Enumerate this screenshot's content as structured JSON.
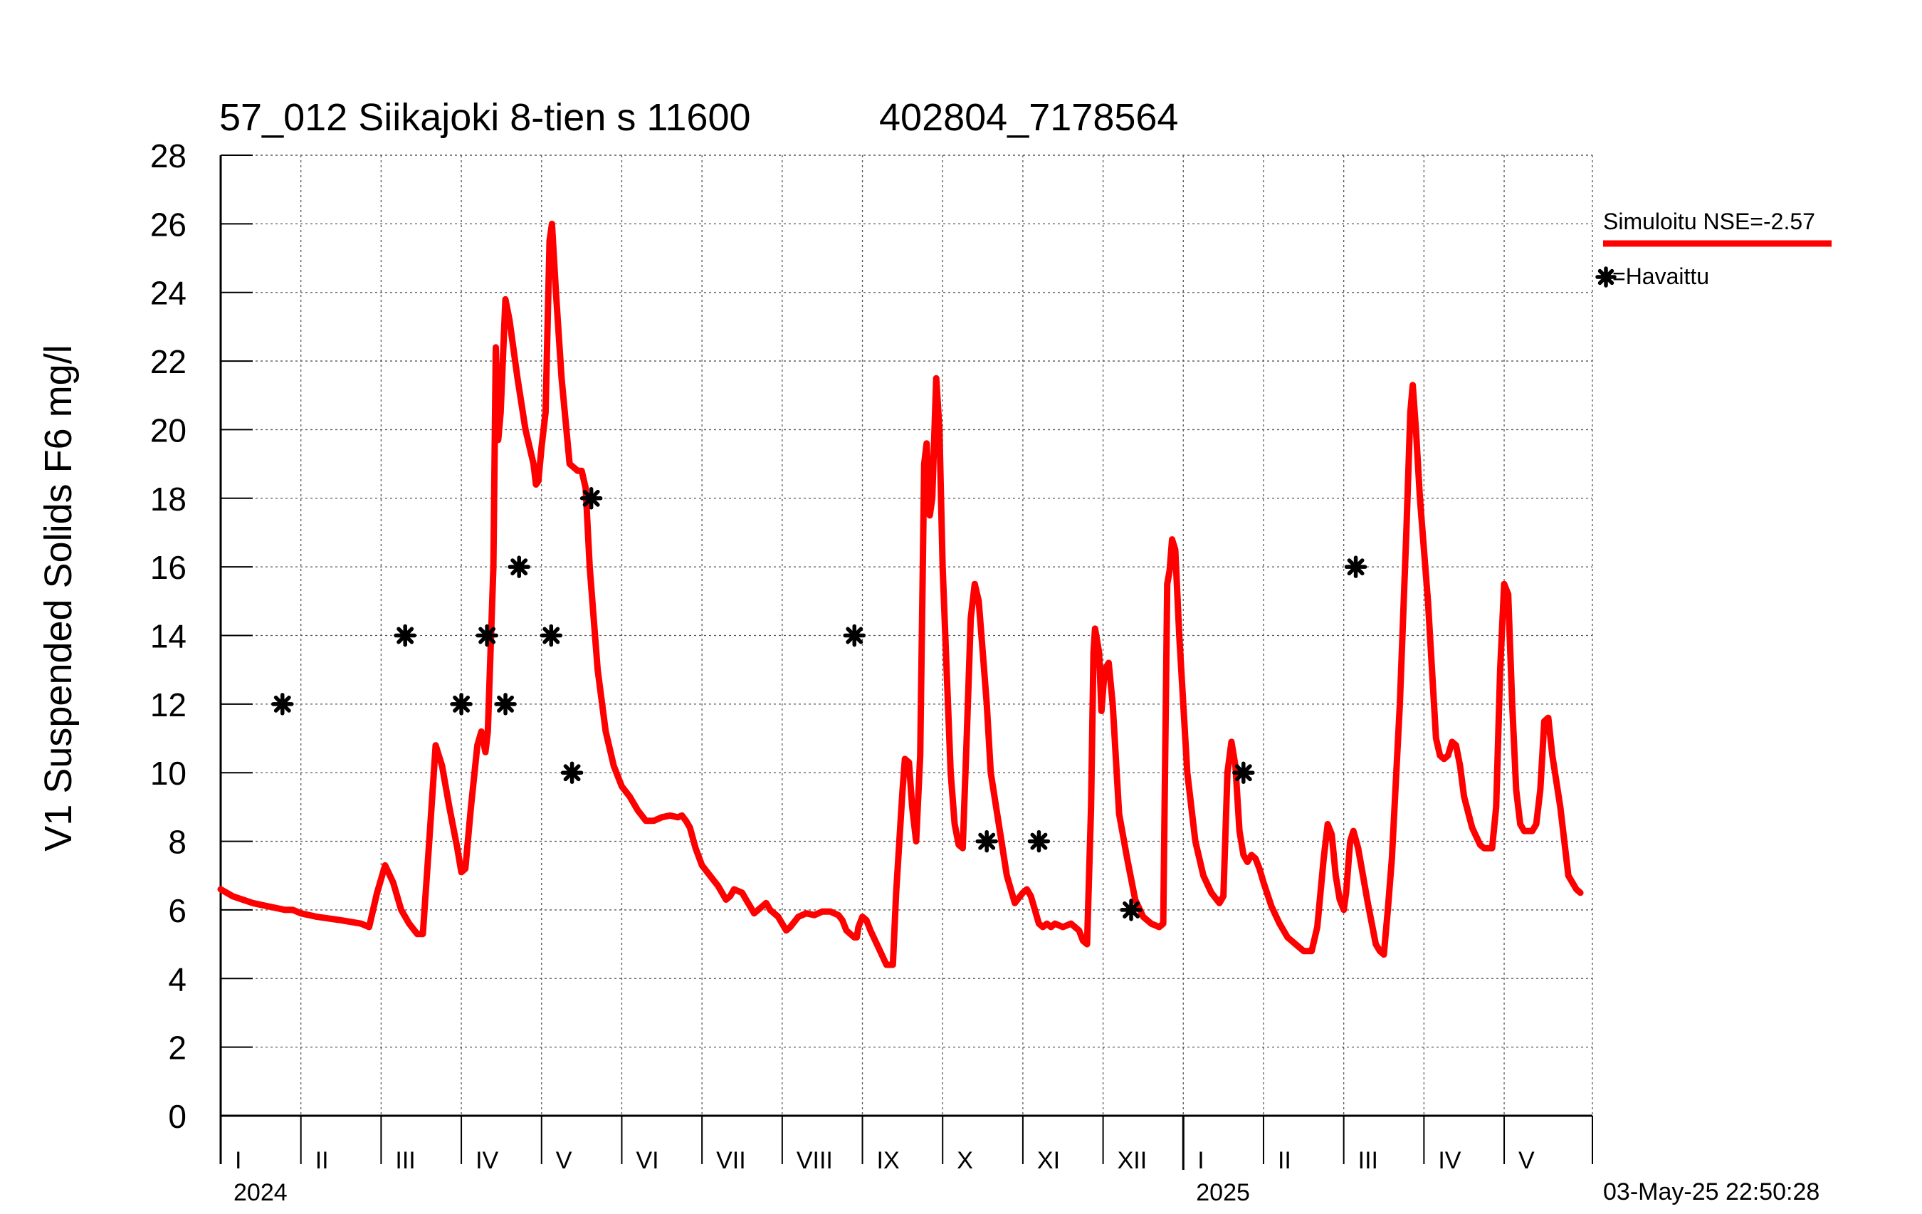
{
  "chart_data": {
    "type": "line",
    "title": "57_012 Siikajoki 8-tien s 11600",
    "station_code": "402804_7178564",
    "ylabel": "V1 Suspended Solids F6 mg/l",
    "xlabel": "",
    "ylim": [
      0,
      28
    ],
    "y_ticks": [
      0,
      2,
      4,
      6,
      8,
      10,
      12,
      14,
      16,
      18,
      20,
      22,
      24,
      26,
      28
    ],
    "grid": true,
    "x_unit": "months since 2024-01-01",
    "xlim": [
      0,
      17.1
    ],
    "months": [
      {
        "label": "I",
        "start": 0,
        "end": 1
      },
      {
        "label": "II",
        "start": 1,
        "end": 2
      },
      {
        "label": "III",
        "start": 2,
        "end": 3
      },
      {
        "label": "IV",
        "start": 3,
        "end": 4
      },
      {
        "label": "V",
        "start": 4,
        "end": 5
      },
      {
        "label": "VI",
        "start": 5,
        "end": 6
      },
      {
        "label": "VII",
        "start": 6,
        "end": 7
      },
      {
        "label": "VIII",
        "start": 7,
        "end": 8
      },
      {
        "label": "IX",
        "start": 8,
        "end": 9
      },
      {
        "label": "X",
        "start": 9,
        "end": 10
      },
      {
        "label": "XI",
        "start": 10,
        "end": 11
      },
      {
        "label": "XII",
        "start": 11,
        "end": 12
      },
      {
        "label": "I",
        "start": 12,
        "end": 13
      },
      {
        "label": "II",
        "start": 13,
        "end": 14
      },
      {
        "label": "III",
        "start": 14,
        "end": 15
      },
      {
        "label": "IV",
        "start": 15,
        "end": 16
      },
      {
        "label": "V",
        "start": 16,
        "end": 17.1
      }
    ],
    "years": [
      {
        "label": "2024",
        "at": 0
      },
      {
        "label": "2025",
        "at": 12
      }
    ],
    "legend_position": "right",
    "series": [
      {
        "name": "Simuloitu NSE=-2.57",
        "type": "line",
        "color": "#ff0000",
        "points": [
          [
            0.0,
            6.6
          ],
          [
            0.15,
            6.4
          ],
          [
            0.4,
            6.2
          ],
          [
            0.6,
            6.1
          ],
          [
            0.8,
            6.0
          ],
          [
            0.9,
            6.0
          ],
          [
            1.0,
            5.9
          ],
          [
            1.2,
            5.8
          ],
          [
            1.5,
            5.7
          ],
          [
            1.75,
            5.6
          ],
          [
            1.85,
            5.5
          ],
          [
            1.95,
            6.5
          ],
          [
            2.05,
            7.3
          ],
          [
            2.15,
            6.8
          ],
          [
            2.25,
            6.0
          ],
          [
            2.35,
            5.6
          ],
          [
            2.45,
            5.3
          ],
          [
            2.52,
            5.3
          ],
          [
            2.6,
            8.0
          ],
          [
            2.68,
            10.8
          ],
          [
            2.76,
            10.2
          ],
          [
            2.85,
            9.0
          ],
          [
            2.95,
            7.8
          ],
          [
            3.0,
            7.1
          ],
          [
            3.05,
            7.2
          ],
          [
            3.12,
            9.0
          ],
          [
            3.2,
            10.8
          ],
          [
            3.25,
            11.2
          ],
          [
            3.3,
            10.6
          ],
          [
            3.33,
            11.2
          ],
          [
            3.4,
            16.0
          ],
          [
            3.43,
            22.4
          ],
          [
            3.46,
            19.7
          ],
          [
            3.49,
            20.5
          ],
          [
            3.55,
            23.8
          ],
          [
            3.6,
            23.2
          ],
          [
            3.7,
            21.5
          ],
          [
            3.8,
            20.0
          ],
          [
            3.9,
            19.0
          ],
          [
            3.93,
            18.4
          ],
          [
            3.96,
            18.5
          ],
          [
            4.0,
            19.5
          ],
          [
            4.05,
            20.5
          ],
          [
            4.1,
            25.5
          ],
          [
            4.13,
            26.0
          ],
          [
            4.18,
            24.0
          ],
          [
            4.25,
            21.5
          ],
          [
            4.35,
            19.0
          ],
          [
            4.45,
            18.8
          ],
          [
            4.5,
            18.8
          ],
          [
            4.55,
            18.3
          ],
          [
            4.6,
            16.0
          ],
          [
            4.7,
            13.0
          ],
          [
            4.8,
            11.2
          ],
          [
            4.9,
            10.2
          ],
          [
            5.0,
            9.6
          ],
          [
            5.1,
            9.3
          ],
          [
            5.2,
            8.9
          ],
          [
            5.3,
            8.6
          ],
          [
            5.4,
            8.6
          ],
          [
            5.5,
            8.7
          ],
          [
            5.6,
            8.75
          ],
          [
            5.7,
            8.7
          ],
          [
            5.75,
            8.75
          ],
          [
            5.8,
            8.6
          ],
          [
            5.85,
            8.4
          ],
          [
            5.92,
            7.8
          ],
          [
            6.0,
            7.3
          ],
          [
            6.1,
            7.0
          ],
          [
            6.2,
            6.7
          ],
          [
            6.25,
            6.5
          ],
          [
            6.3,
            6.3
          ],
          [
            6.35,
            6.4
          ],
          [
            6.4,
            6.6
          ],
          [
            6.5,
            6.5
          ],
          [
            6.55,
            6.3
          ],
          [
            6.6,
            6.1
          ],
          [
            6.65,
            5.9
          ],
          [
            6.7,
            6.0
          ],
          [
            6.75,
            6.1
          ],
          [
            6.8,
            6.2
          ],
          [
            6.85,
            6.0
          ],
          [
            6.95,
            5.8
          ],
          [
            7.0,
            5.6
          ],
          [
            7.05,
            5.4
          ],
          [
            7.1,
            5.5
          ],
          [
            7.2,
            5.8
          ],
          [
            7.3,
            5.9
          ],
          [
            7.4,
            5.85
          ],
          [
            7.5,
            5.95
          ],
          [
            7.6,
            5.95
          ],
          [
            7.7,
            5.85
          ],
          [
            7.75,
            5.7
          ],
          [
            7.8,
            5.4
          ],
          [
            7.85,
            5.3
          ],
          [
            7.9,
            5.2
          ],
          [
            7.93,
            5.2
          ],
          [
            7.95,
            5.5
          ],
          [
            8.0,
            5.8
          ],
          [
            8.05,
            5.7
          ],
          [
            8.1,
            5.4
          ],
          [
            8.2,
            4.9
          ],
          [
            8.3,
            4.4
          ],
          [
            8.38,
            4.4
          ],
          [
            8.42,
            6.5
          ],
          [
            8.5,
            9.5
          ],
          [
            8.53,
            10.4
          ],
          [
            8.58,
            10.3
          ],
          [
            8.62,
            9.0
          ],
          [
            8.67,
            8.0
          ],
          [
            8.72,
            10.5
          ],
          [
            8.77,
            19.0
          ],
          [
            8.8,
            19.6
          ],
          [
            8.84,
            17.5
          ],
          [
            8.87,
            18.0
          ],
          [
            8.92,
            21.5
          ],
          [
            8.96,
            20.0
          ],
          [
            9.0,
            16.0
          ],
          [
            9.05,
            13.0
          ],
          [
            9.1,
            10.0
          ],
          [
            9.15,
            8.5
          ],
          [
            9.2,
            7.9
          ],
          [
            9.25,
            7.8
          ],
          [
            9.3,
            11.0
          ],
          [
            9.35,
            14.5
          ],
          [
            9.4,
            15.5
          ],
          [
            9.45,
            15.0
          ],
          [
            9.5,
            13.5
          ],
          [
            9.55,
            12.0
          ],
          [
            9.6,
            10.0
          ],
          [
            9.7,
            8.5
          ],
          [
            9.8,
            7.0
          ],
          [
            9.9,
            6.2
          ],
          [
            10.0,
            6.5
          ],
          [
            10.05,
            6.6
          ],
          [
            10.1,
            6.4
          ],
          [
            10.15,
            6.0
          ],
          [
            10.2,
            5.6
          ],
          [
            10.25,
            5.5
          ],
          [
            10.3,
            5.6
          ],
          [
            10.35,
            5.5
          ],
          [
            10.4,
            5.6
          ],
          [
            10.5,
            5.5
          ],
          [
            10.6,
            5.6
          ],
          [
            10.7,
            5.4
          ],
          [
            10.75,
            5.1
          ],
          [
            10.8,
            5.0
          ],
          [
            10.85,
            9.0
          ],
          [
            10.88,
            13.5
          ],
          [
            10.9,
            14.2
          ],
          [
            10.95,
            13.5
          ],
          [
            10.98,
            11.8
          ],
          [
            11.02,
            13.0
          ],
          [
            11.07,
            13.2
          ],
          [
            11.12,
            12.0
          ],
          [
            11.2,
            8.8
          ],
          [
            11.3,
            7.5
          ],
          [
            11.4,
            6.3
          ],
          [
            11.5,
            5.8
          ],
          [
            11.6,
            5.6
          ],
          [
            11.7,
            5.5
          ],
          [
            11.75,
            5.6
          ],
          [
            11.8,
            15.5
          ],
          [
            11.83,
            15.9
          ],
          [
            11.86,
            16.8
          ],
          [
            11.9,
            16.5
          ],
          [
            11.95,
            14.0
          ],
          [
            12.05,
            10.0
          ],
          [
            12.15,
            8.0
          ],
          [
            12.25,
            7.0
          ],
          [
            12.35,
            6.5
          ],
          [
            12.45,
            6.2
          ],
          [
            12.5,
            6.4
          ],
          [
            12.55,
            10.0
          ],
          [
            12.6,
            10.9
          ],
          [
            12.65,
            10.2
          ],
          [
            12.7,
            8.3
          ],
          [
            12.75,
            7.6
          ],
          [
            12.8,
            7.4
          ],
          [
            12.85,
            7.6
          ],
          [
            12.9,
            7.5
          ],
          [
            12.95,
            7.2
          ],
          [
            13.0,
            6.8
          ],
          [
            13.1,
            6.1
          ],
          [
            13.2,
            5.6
          ],
          [
            13.3,
            5.2
          ],
          [
            13.4,
            5.0
          ],
          [
            13.5,
            4.8
          ],
          [
            13.6,
            4.8
          ],
          [
            13.67,
            5.5
          ],
          [
            13.75,
            7.5
          ],
          [
            13.8,
            8.5
          ],
          [
            13.85,
            8.2
          ],
          [
            13.9,
            7.0
          ],
          [
            13.95,
            6.3
          ],
          [
            14.0,
            6.0
          ],
          [
            14.03,
            6.5
          ],
          [
            14.08,
            8.0
          ],
          [
            14.12,
            8.3
          ],
          [
            14.18,
            7.8
          ],
          [
            14.3,
            6.2
          ],
          [
            14.4,
            5.0
          ],
          [
            14.45,
            4.8
          ],
          [
            14.5,
            4.7
          ],
          [
            14.55,
            6.0
          ],
          [
            14.6,
            7.5
          ],
          [
            14.7,
            12.0
          ],
          [
            14.78,
            17.0
          ],
          [
            14.83,
            20.5
          ],
          [
            14.86,
            21.3
          ],
          [
            14.9,
            20.0
          ],
          [
            14.95,
            18.0
          ],
          [
            15.05,
            15.0
          ],
          [
            15.15,
            11.0
          ],
          [
            15.2,
            10.5
          ],
          [
            15.25,
            10.4
          ],
          [
            15.3,
            10.5
          ],
          [
            15.35,
            10.9
          ],
          [
            15.4,
            10.8
          ],
          [
            15.45,
            10.2
          ],
          [
            15.5,
            9.3
          ],
          [
            15.6,
            8.4
          ],
          [
            15.7,
            7.9
          ],
          [
            15.75,
            7.8
          ],
          [
            15.85,
            7.8
          ],
          [
            15.9,
            9.0
          ],
          [
            15.95,
            13.0
          ],
          [
            16.0,
            15.5
          ],
          [
            16.05,
            15.2
          ],
          [
            16.1,
            12.0
          ],
          [
            16.15,
            9.5
          ],
          [
            16.2,
            8.5
          ],
          [
            16.25,
            8.3
          ],
          [
            16.35,
            8.3
          ],
          [
            16.4,
            8.5
          ],
          [
            16.45,
            9.5
          ],
          [
            16.5,
            11.5
          ],
          [
            16.55,
            11.6
          ],
          [
            16.6,
            10.5
          ],
          [
            16.7,
            9.0
          ],
          [
            16.8,
            7.0
          ],
          [
            16.9,
            6.6
          ],
          [
            16.95,
            6.5
          ]
        ]
      },
      {
        "name": "Havaittu",
        "type": "scatter",
        "marker": "asterisk",
        "color": "#000000",
        "points": [
          [
            0.77,
            12
          ],
          [
            2.3,
            14
          ],
          [
            3.0,
            12
          ],
          [
            3.32,
            14
          ],
          [
            3.55,
            12
          ],
          [
            3.72,
            16
          ],
          [
            4.12,
            14
          ],
          [
            4.38,
            10
          ],
          [
            4.62,
            18
          ],
          [
            7.9,
            14
          ],
          [
            9.55,
            8
          ],
          [
            10.2,
            8
          ],
          [
            11.35,
            6
          ],
          [
            12.75,
            10
          ],
          [
            14.15,
            16
          ]
        ]
      }
    ],
    "legend": [
      {
        "label": "Simuloitu NSE=-2.57",
        "kind": "line",
        "color": "#ff0000"
      },
      {
        "label": "=Havaittu",
        "kind": "asterisk",
        "color": "#000000"
      }
    ],
    "timestamp": "03-May-25 22:50:28"
  }
}
